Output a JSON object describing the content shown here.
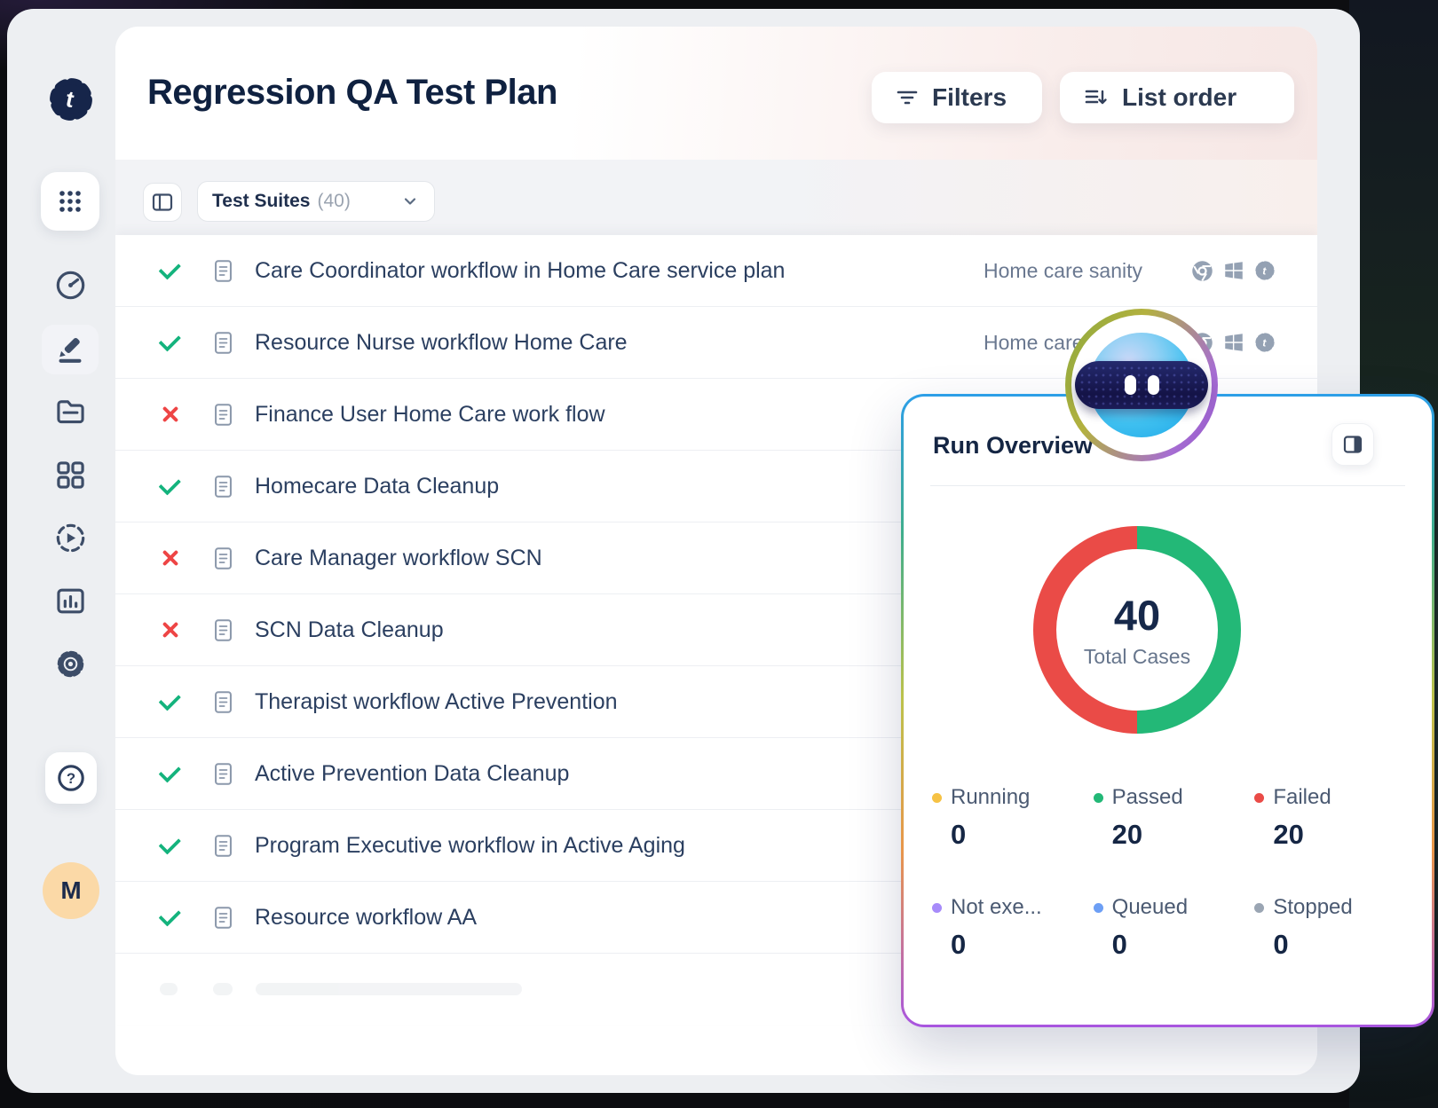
{
  "app": {
    "logo_letter": "t"
  },
  "header": {
    "title": "Regression QA Test Plan",
    "filters_label": "Filters",
    "list_order_label": "List order"
  },
  "toolbar": {
    "suites_label": "Test Suites",
    "suites_count": "(40)"
  },
  "sidebar": {
    "avatar_initial": "M",
    "items": [
      "apps",
      "dashboard",
      "editor",
      "folder",
      "test-suites",
      "runs",
      "reports",
      "settings",
      "help",
      "profile"
    ]
  },
  "suites": {
    "rows": [
      {
        "status": "passed",
        "title": "Care Coordinator workflow in Home Care service plan",
        "tag": "Home care sanity",
        "platforms": [
          "chrome",
          "windows",
          "testsigma"
        ],
        "show_right": true
      },
      {
        "status": "passed",
        "title": "Resource Nurse workflow Home Care",
        "tag": "Home care sanity",
        "platforms": [
          "chrome",
          "windows",
          "testsigma"
        ],
        "show_right": true
      },
      {
        "status": "failed",
        "title": "Finance User Home Care work flow",
        "show_right": false
      },
      {
        "status": "passed",
        "title": "Homecare Data Cleanup",
        "show_right": false
      },
      {
        "status": "failed",
        "title": "Care Manager workflow SCN",
        "show_right": false
      },
      {
        "status": "failed",
        "title": "SCN Data Cleanup",
        "show_right": false
      },
      {
        "status": "passed",
        "title": "Therapist workflow Active Prevention",
        "show_right": false
      },
      {
        "status": "passed",
        "title": "Active Prevention Data Cleanup",
        "show_right": false
      },
      {
        "status": "passed",
        "title": "Program Executive workflow in Active Aging",
        "show_right": false
      },
      {
        "status": "passed",
        "title": "Resource workflow AA",
        "show_right": false
      }
    ]
  },
  "run_overview": {
    "title": "Run Overview",
    "total_value": "40",
    "total_label": "Total Cases"
  },
  "chart_data": {
    "type": "donut",
    "title": "Run Overview",
    "center_value": 40,
    "center_label": "Total Cases",
    "segments": [
      {
        "label": "Running",
        "value": 0,
        "color": "#f6c244"
      },
      {
        "label": "Passed",
        "value": 20,
        "color": "#23b877"
      },
      {
        "label": "Failed",
        "value": 20,
        "color": "#ea4b47"
      },
      {
        "label": "Not exe...",
        "value": 0,
        "color": "#a78bfa"
      },
      {
        "label": "Queued",
        "value": 0,
        "color": "#6d9ff5"
      },
      {
        "label": "Stopped",
        "value": 0,
        "color": "#9aa5b3"
      }
    ],
    "legend_position": "bottom",
    "start_angle_deg": 0
  },
  "colors": {
    "passed_check": "#14b37d",
    "failed_cross": "#ee4545",
    "donut_green": "#23b877",
    "donut_red": "#ea4b47",
    "navy_text": "#152644",
    "muted_text": "#6a7890",
    "panel_border_top": "#2d9fe8",
    "panel_border_bottom": "#a855e0"
  }
}
